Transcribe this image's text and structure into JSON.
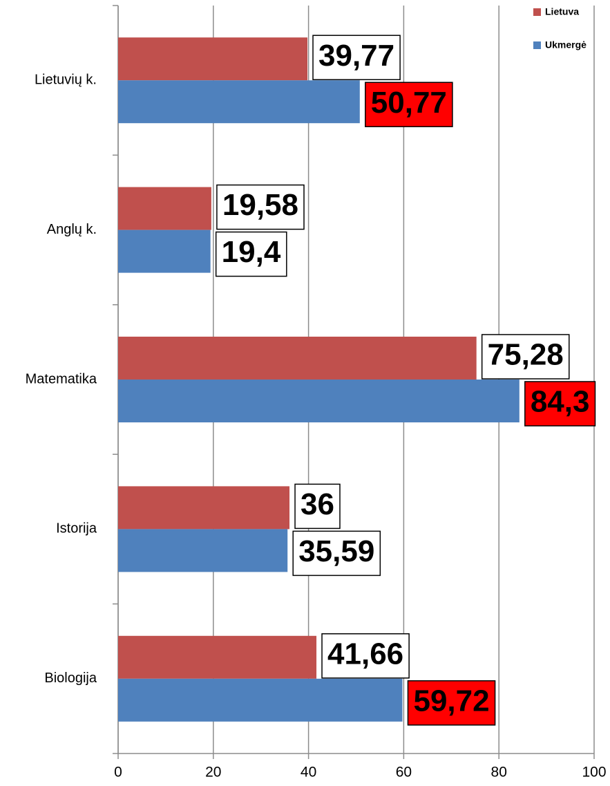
{
  "chart_data": {
    "type": "hbar",
    "categories": [
      "Lietuvių  k.",
      "Anglų  k.",
      "Matematika",
      "Istorija",
      "Biologija"
    ],
    "series": [
      {
        "name": "Lietuva",
        "color": "#c0504d",
        "values": [
          39.77,
          19.58,
          75.28,
          36,
          41.66
        ],
        "value_labels": [
          "39,77",
          "19,58",
          "75,28",
          "36",
          "41,66"
        ],
        "value_label_fills": [
          "#ffffff",
          "#ffffff",
          "#ffffff",
          "#ffffff",
          "#ffffff"
        ]
      },
      {
        "name": "Ukmergė",
        "color": "#4f81bd",
        "values": [
          50.77,
          19.4,
          84.3,
          35.59,
          59.72
        ],
        "value_labels": [
          "50,77",
          "19,4",
          "84,3",
          "35,59",
          "59,72"
        ],
        "value_label_fills": [
          "#ff0000",
          "#ffffff",
          "#ff0000",
          "#ffffff",
          "#ff0000"
        ]
      }
    ],
    "xlim": [
      0,
      100
    ],
    "xticks": [
      0,
      20,
      40,
      60,
      80,
      100
    ],
    "grid": true,
    "legend": "top-right"
  }
}
